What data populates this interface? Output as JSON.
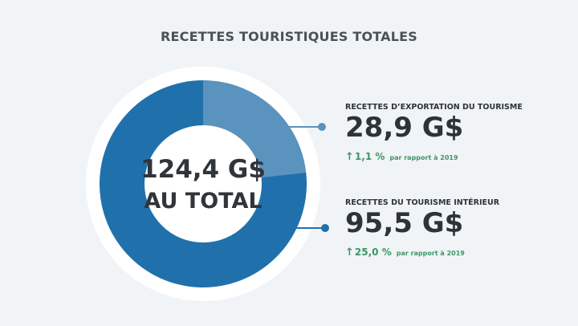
{
  "title": "RECETTES TOURISTIQUES TOTALES",
  "center": {
    "total": "124,4 G$",
    "subtitle": "AU TOTAL"
  },
  "colors": {
    "background": "#f1f4f7",
    "ring_outer": "#ffffff",
    "export_slice": "#5a93bd",
    "domestic_slice": "#2071ab",
    "positive": "#3d9566",
    "connector": "#5a93bd"
  },
  "stats": [
    {
      "label": "RECETTES D’EXPORTATION DU TOURISME",
      "value": "28,9 G$",
      "change": "1,1 %",
      "note": "par rapport à 2019",
      "arrow_icon": "arrow-up-icon"
    },
    {
      "label": "RECETTES DU TOURISME INTÉRIEUR",
      "value": "95,5 G$",
      "change": "25,0 %",
      "note": "par rapport à 2019",
      "arrow_icon": "arrow-up-icon"
    }
  ],
  "chart_data": {
    "type": "pie",
    "title": "RECETTES TOURISTIQUES TOTALES",
    "total": 124.4,
    "unit": "G$",
    "categories": [
      "RECETTES D’EXPORTATION DU TOURISME",
      "RECETTES DU TOURISME INTÉRIEUR"
    ],
    "values": [
      28.9,
      95.5
    ],
    "start_angle_degrees": 0,
    "direction": "clockwise"
  }
}
